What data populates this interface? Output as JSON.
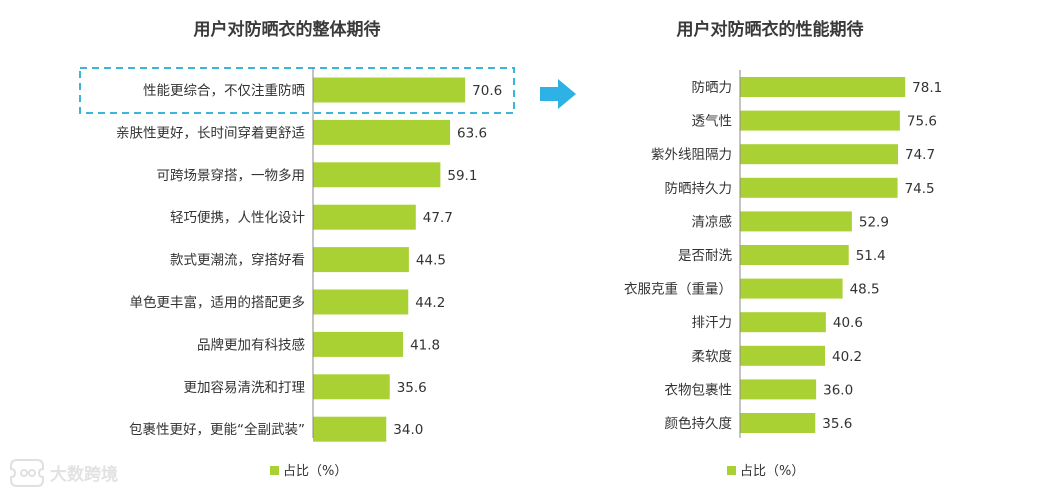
{
  "colors": {
    "bar": "#a9d133",
    "axis": "#8a8a8a",
    "highlight_border": "#3cb4dc",
    "arrow": "#2eb2e5",
    "watermark": "#e0e0e0"
  },
  "watermark": {
    "text": "大数跨境",
    "icon": "ticket-logo-icon"
  },
  "chart_data": [
    {
      "type": "bar",
      "orientation": "horizontal",
      "title": "用户对防晒衣的整体期待",
      "categories": [
        "性能更综合，不仅注重防晒",
        "亲肤性更好，长时间穿着更舒适",
        "可跨场景穿搭，一物多用",
        "轻巧便携，人性化设计",
        "款式更潮流，穿搭好看",
        "单色更丰富，适用的搭配更多",
        "品牌更加有科技感",
        "更加容易清洗和打理",
        "包裹性更好，更能“全副武装”"
      ],
      "values": [
        70.6,
        63.6,
        59.1,
        47.7,
        44.5,
        44.2,
        41.8,
        35.6,
        34.0
      ],
      "value_labels": [
        "70.6",
        "63.6",
        "59.1",
        "47.7",
        "44.5",
        "44.2",
        "41.8",
        "35.6",
        "34.0"
      ],
      "legend": "占比（%）",
      "highlighted_category": "性能更综合，不仅注重防晒",
      "xlim": [
        0,
        100
      ],
      "grid": false
    },
    {
      "type": "bar",
      "orientation": "horizontal",
      "title": "用户对防晒衣的性能期待",
      "categories": [
        "防晒力",
        "透气性",
        "紫外线阻隔力",
        "防晒持久力",
        "清凉感",
        "是否耐洗",
        "衣服克重（重量）",
        "排汗力",
        "柔软度",
        "衣物包裹性",
        "颜色持久度"
      ],
      "values": [
        78.1,
        75.6,
        74.7,
        74.5,
        52.9,
        51.4,
        48.5,
        40.6,
        40.2,
        36.0,
        35.6
      ],
      "value_labels": [
        "78.1",
        "75.6",
        "74.7",
        "74.5",
        "52.9",
        "51.4",
        "48.5",
        "40.6",
        "40.2",
        "36.0",
        "35.6"
      ],
      "legend": "占比（%）",
      "xlim": [
        0,
        100
      ],
      "grid": false
    }
  ]
}
